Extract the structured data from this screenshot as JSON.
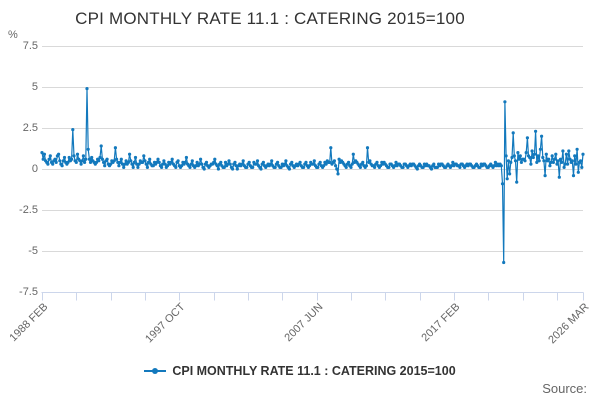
{
  "chart_data": {
    "type": "line",
    "title": "CPI MONTHLY RATE 11.1 : CATERING 2015=100",
    "unit_label": "%",
    "ylim": [
      -7.5,
      7.5
    ],
    "yticks": [
      7.5,
      5,
      2.5,
      0,
      -2.5,
      -5,
      -7.5
    ],
    "grid": "horizontal",
    "legend_position": "bottom-center",
    "months_total": 457,
    "x_major_ticks": [
      {
        "month_index": 0,
        "label": "1988 FEB"
      },
      {
        "month_index": 116,
        "label": "1997 OCT"
      },
      {
        "month_index": 232,
        "label": "2007 JUN"
      },
      {
        "month_index": 348,
        "label": "2017 FEB"
      },
      {
        "month_index": 457,
        "label": "2026 MAR"
      }
    ],
    "x_minor_tick_month_indices": [
      29,
      58,
      87,
      145,
      174,
      203,
      261,
      290,
      319,
      377,
      406,
      435
    ],
    "series": [
      {
        "name": "CPI MONTHLY RATE 11.1 : CATERING 2015=100",
        "color": "#1379bd",
        "start": "1988 FEB",
        "end": "2026 MAR",
        "values": [
          1.0,
          0.6,
          0.9,
          0.5,
          0.4,
          0.3,
          0.6,
          0.8,
          0.4,
          0.3,
          0.5,
          0.6,
          0.4,
          0.8,
          0.9,
          0.5,
          0.3,
          0.2,
          0.5,
          0.7,
          0.4,
          0.3,
          0.4,
          0.7,
          0.5,
          0.6,
          2.4,
          0.8,
          0.5,
          0.4,
          0.9,
          0.6,
          0.5,
          0.3,
          0.5,
          0.8,
          0.4,
          0.6,
          4.9,
          1.2,
          0.6,
          0.4,
          0.7,
          0.5,
          0.4,
          0.3,
          0.4,
          0.6,
          0.5,
          0.7,
          1.4,
          0.6,
          0.4,
          0.2,
          0.5,
          0.6,
          0.3,
          0.2,
          0.3,
          0.5,
          0.4,
          0.5,
          1.3,
          0.6,
          0.4,
          0.2,
          0.4,
          0.6,
          0.3,
          0.1,
          0.3,
          0.5,
          0.3,
          0.4,
          0.9,
          0.5,
          0.3,
          0.1,
          0.4,
          0.7,
          0.3,
          0.1,
          0.3,
          0.5,
          0.4,
          0.4,
          0.8,
          0.5,
          0.3,
          0.1,
          0.4,
          0.6,
          0.3,
          0.2,
          0.2,
          0.4,
          0.3,
          0.4,
          0.6,
          0.4,
          0.2,
          0.1,
          0.3,
          0.5,
          0.3,
          0.1,
          0.2,
          0.4,
          0.3,
          0.4,
          0.6,
          0.3,
          0.2,
          0.1,
          0.4,
          0.5,
          0.2,
          0.1,
          0.2,
          0.4,
          0.3,
          0.4,
          0.7,
          0.3,
          0.2,
          0.1,
          0.3,
          0.5,
          0.2,
          0.1,
          0.2,
          0.4,
          0.2,
          0.3,
          0.6,
          0.3,
          0.1,
          0.0,
          0.3,
          0.4,
          0.2,
          0.1,
          0.2,
          0.3,
          0.3,
          0.4,
          0.6,
          0.3,
          0.2,
          0.0,
          0.3,
          0.4,
          0.2,
          0.1,
          0.1,
          0.4,
          0.2,
          0.3,
          0.5,
          0.3,
          0.1,
          0.0,
          0.3,
          0.4,
          0.2,
          0.0,
          0.2,
          0.3,
          0.2,
          0.3,
          0.5,
          0.2,
          0.1,
          0.1,
          0.3,
          0.4,
          0.2,
          0.1,
          0.1,
          0.4,
          0.3,
          0.3,
          0.5,
          0.2,
          0.1,
          0.0,
          0.3,
          0.4,
          0.2,
          0.1,
          0.2,
          0.3,
          0.2,
          0.3,
          0.5,
          0.2,
          0.1,
          0.1,
          0.3,
          0.4,
          0.2,
          0.1,
          0.1,
          0.3,
          0.2,
          0.3,
          0.5,
          0.2,
          0.1,
          0.0,
          0.3,
          0.4,
          0.2,
          0.1,
          0.2,
          0.3,
          0.2,
          0.3,
          0.4,
          0.2,
          0.1,
          0.1,
          0.3,
          0.4,
          0.2,
          0.1,
          0.2,
          0.4,
          0.3,
          0.3,
          0.5,
          0.2,
          0.1,
          0.1,
          0.3,
          0.4,
          0.2,
          0.1,
          0.2,
          0.4,
          0.3,
          0.5,
          0.4,
          0.4,
          1.3,
          0.3,
          0.4,
          0.5,
          0.2,
          0.0,
          -0.3,
          0.6,
          0.4,
          0.5,
          0.4,
          0.3,
          0.2,
          0.1,
          0.3,
          0.4,
          0.2,
          0.1,
          0.3,
          0.9,
          0.4,
          0.5,
          0.4,
          0.3,
          0.2,
          0.1,
          0.3,
          0.4,
          0.2,
          0.1,
          0.2,
          1.3,
          0.4,
          0.5,
          0.3,
          0.2,
          0.2,
          0.1,
          0.3,
          0.4,
          0.2,
          0.1,
          0.2,
          0.4,
          0.3,
          0.4,
          0.3,
          0.2,
          0.1,
          0.1,
          0.3,
          0.3,
          0.2,
          0.1,
          0.2,
          0.4,
          0.2,
          0.3,
          0.3,
          0.2,
          0.1,
          0.1,
          0.3,
          0.3,
          0.2,
          0.1,
          0.2,
          0.3,
          0.2,
          0.3,
          0.3,
          0.2,
          0.1,
          0.0,
          0.2,
          0.3,
          0.2,
          0.1,
          0.1,
          0.3,
          0.2,
          0.3,
          0.2,
          0.2,
          0.1,
          0.0,
          0.2,
          0.3,
          0.1,
          0.1,
          0.1,
          0.3,
          0.2,
          0.3,
          0.3,
          0.2,
          0.1,
          0.1,
          0.2,
          0.3,
          0.2,
          0.1,
          0.2,
          0.4,
          0.2,
          0.3,
          0.3,
          0.2,
          0.2,
          0.1,
          0.3,
          0.3,
          0.2,
          0.1,
          0.2,
          0.3,
          0.2,
          0.3,
          0.3,
          0.2,
          0.1,
          0.1,
          0.2,
          0.3,
          0.2,
          0.1,
          0.1,
          0.3,
          0.2,
          0.3,
          0.3,
          0.2,
          0.1,
          0.1,
          0.2,
          0.3,
          0.2,
          0.1,
          0.2,
          0.4,
          0.2,
          0.3,
          0.2,
          0.3,
          0.2,
          -0.9,
          -5.7,
          4.1,
          0.8,
          -0.6,
          0.5,
          -0.3,
          0.4,
          0.7,
          2.2,
          0.8,
          0.5,
          -0.8,
          1.0,
          0.6,
          0.8,
          0.4,
          0.6,
          0.6,
          0.5,
          1.0,
          1.9,
          0.8,
          0.7,
          0.3,
          1.1,
          0.7,
          0.9,
          2.3,
          0.4,
          0.8,
          0.5,
          1.2,
          2.0,
          0.7,
          0.5,
          -0.4,
          0.9,
          0.5,
          0.6,
          0.2,
          0.4,
          0.8,
          0.4,
          0.6,
          0.9,
          0.3,
          0.5,
          -0.5,
          0.6,
          0.4,
          1.1,
          0.1,
          0.3,
          0.9,
          0.3,
          1.1,
          0.6,
          0.4,
          0.5,
          -0.4,
          0.8,
          0.3,
          1.2,
          -0.2,
          0.4,
          0.5,
          0.1,
          0.9
        ]
      }
    ]
  },
  "footer": {
    "source_label": "Source:"
  }
}
